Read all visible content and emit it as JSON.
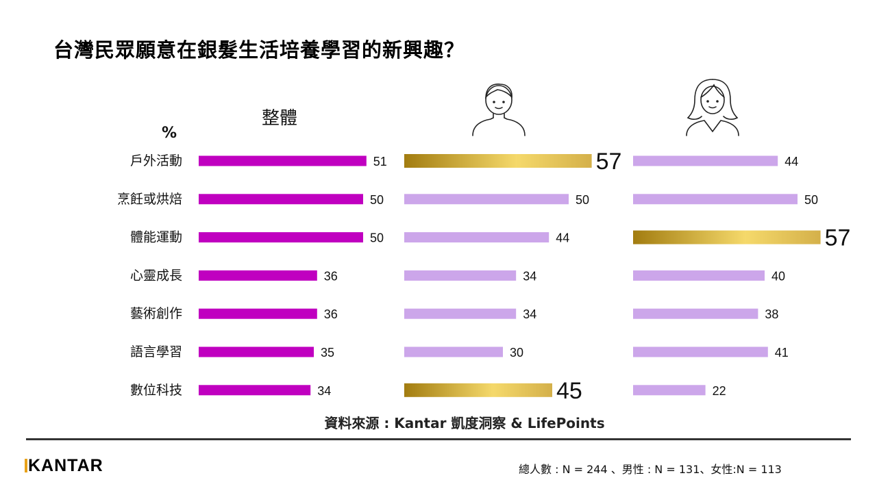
{
  "title": "台灣民眾願意在銀髮生活培養學習的新興趣？",
  "overall_header": "整體",
  "percent_label": "%",
  "source": "資料來源 : Kantar 凱度洞察 & LifePoints",
  "sample_note": "總人數 : N = 244 、男性 : N = 131、女性:N = 113",
  "logo_text": "KANTAR",
  "icons": {
    "male": "male-person-icon",
    "female": "female-person-icon"
  },
  "colors": {
    "overall": "#c000c0",
    "light": "#cca6ea",
    "gold_start": "#a27c10",
    "gold_mid": "#f5d96b",
    "gold_end": "#d4b04a",
    "logo_accent": "#e8a21a"
  },
  "chart_data": [
    {
      "type": "bar",
      "orientation": "horizontal",
      "categories": [
        "戶外活動",
        "烹飪或烘焙",
        "體能運動",
        "心靈成長",
        "藝術創作",
        "語言學習",
        "數位科技"
      ],
      "series": [
        {
          "name": "整體",
          "values": [
            51,
            50,
            50,
            36,
            36,
            35,
            34
          ]
        },
        {
          "values": [
            57,
            50,
            44,
            34,
            34,
            30,
            45
          ],
          "highlight": [
            0,
            6
          ]
        },
        {
          "values": [
            44,
            50,
            57,
            40,
            38,
            41,
            22
          ],
          "highlight": [
            2
          ]
        }
      ],
      "unit": "%"
    }
  ]
}
